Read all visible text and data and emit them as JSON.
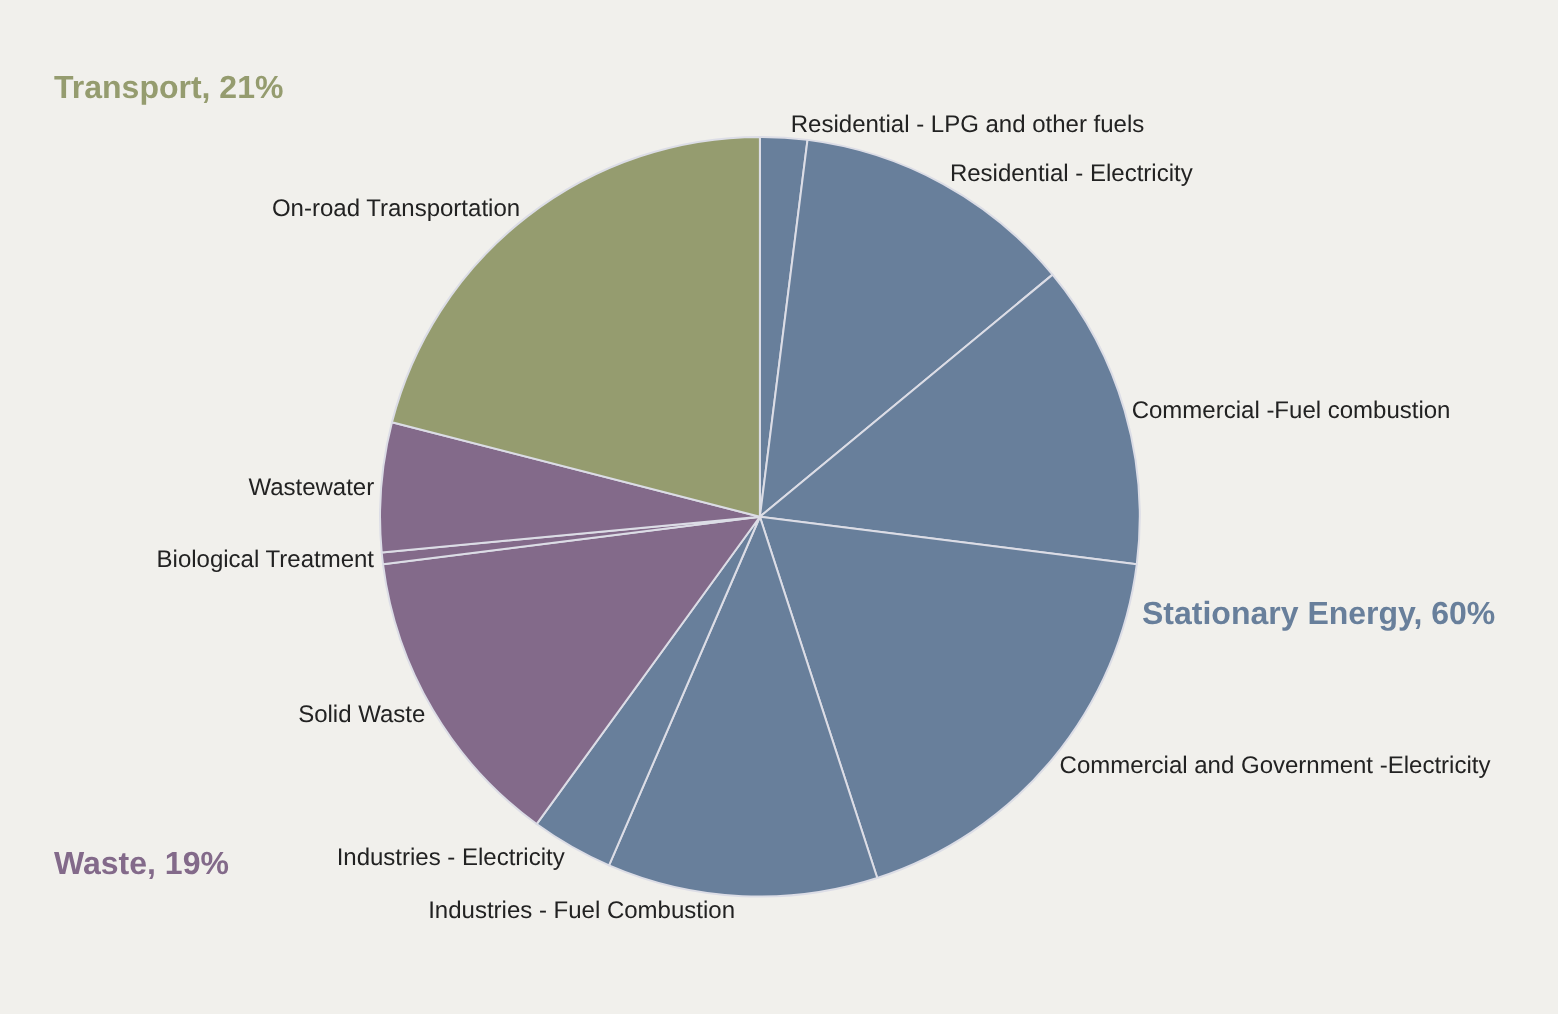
{
  "chart_data": {
    "type": "pie",
    "categories": [
      "Residential - LPG and other fuels",
      "Residential - Electricity",
      "Commercial -Fuel combustion",
      "Commercial and Government -Electricity",
      "Industries - Fuel Combustion",
      "Industries - Electricity",
      "Solid Waste",
      "Biological Treatment",
      "Wastewater",
      "On-road Transportation"
    ],
    "values": [
      2,
      12,
      13,
      18,
      11.5,
      3.5,
      13,
      0.5,
      5.5,
      21
    ],
    "colors": [
      "#687f9b",
      "#687f9b",
      "#687f9b",
      "#687f9b",
      "#687f9b",
      "#687f9b",
      "#836a8a",
      "#836a8a",
      "#836a8a",
      "#959c6f"
    ],
    "annotations": [
      "Stationary Energy, 60%",
      "Waste, 19%",
      "Transport, 21%"
    ],
    "legend": false
  }
}
